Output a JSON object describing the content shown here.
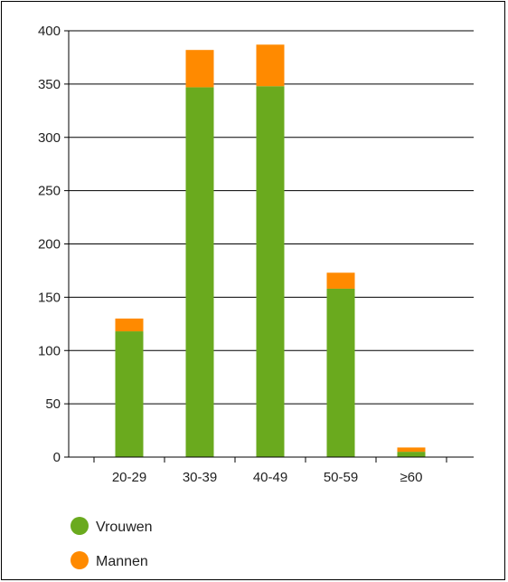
{
  "chart_data": {
    "type": "bar",
    "stacked": true,
    "categories": [
      "20-29",
      "30-39",
      "40-49",
      "50-59",
      "≥60"
    ],
    "series": [
      {
        "name": "Vrouwen",
        "color": "#6aaa1e",
        "values": [
          118,
          347,
          348,
          158,
          5
        ]
      },
      {
        "name": "Mannen",
        "color": "#ff8a00",
        "values": [
          12,
          35,
          39,
          15,
          4
        ]
      }
    ],
    "ylim": [
      0,
      400
    ],
    "yticks": [
      0,
      50,
      100,
      150,
      200,
      250,
      300,
      350,
      400
    ],
    "grid": true,
    "legend": "bottom-left"
  }
}
